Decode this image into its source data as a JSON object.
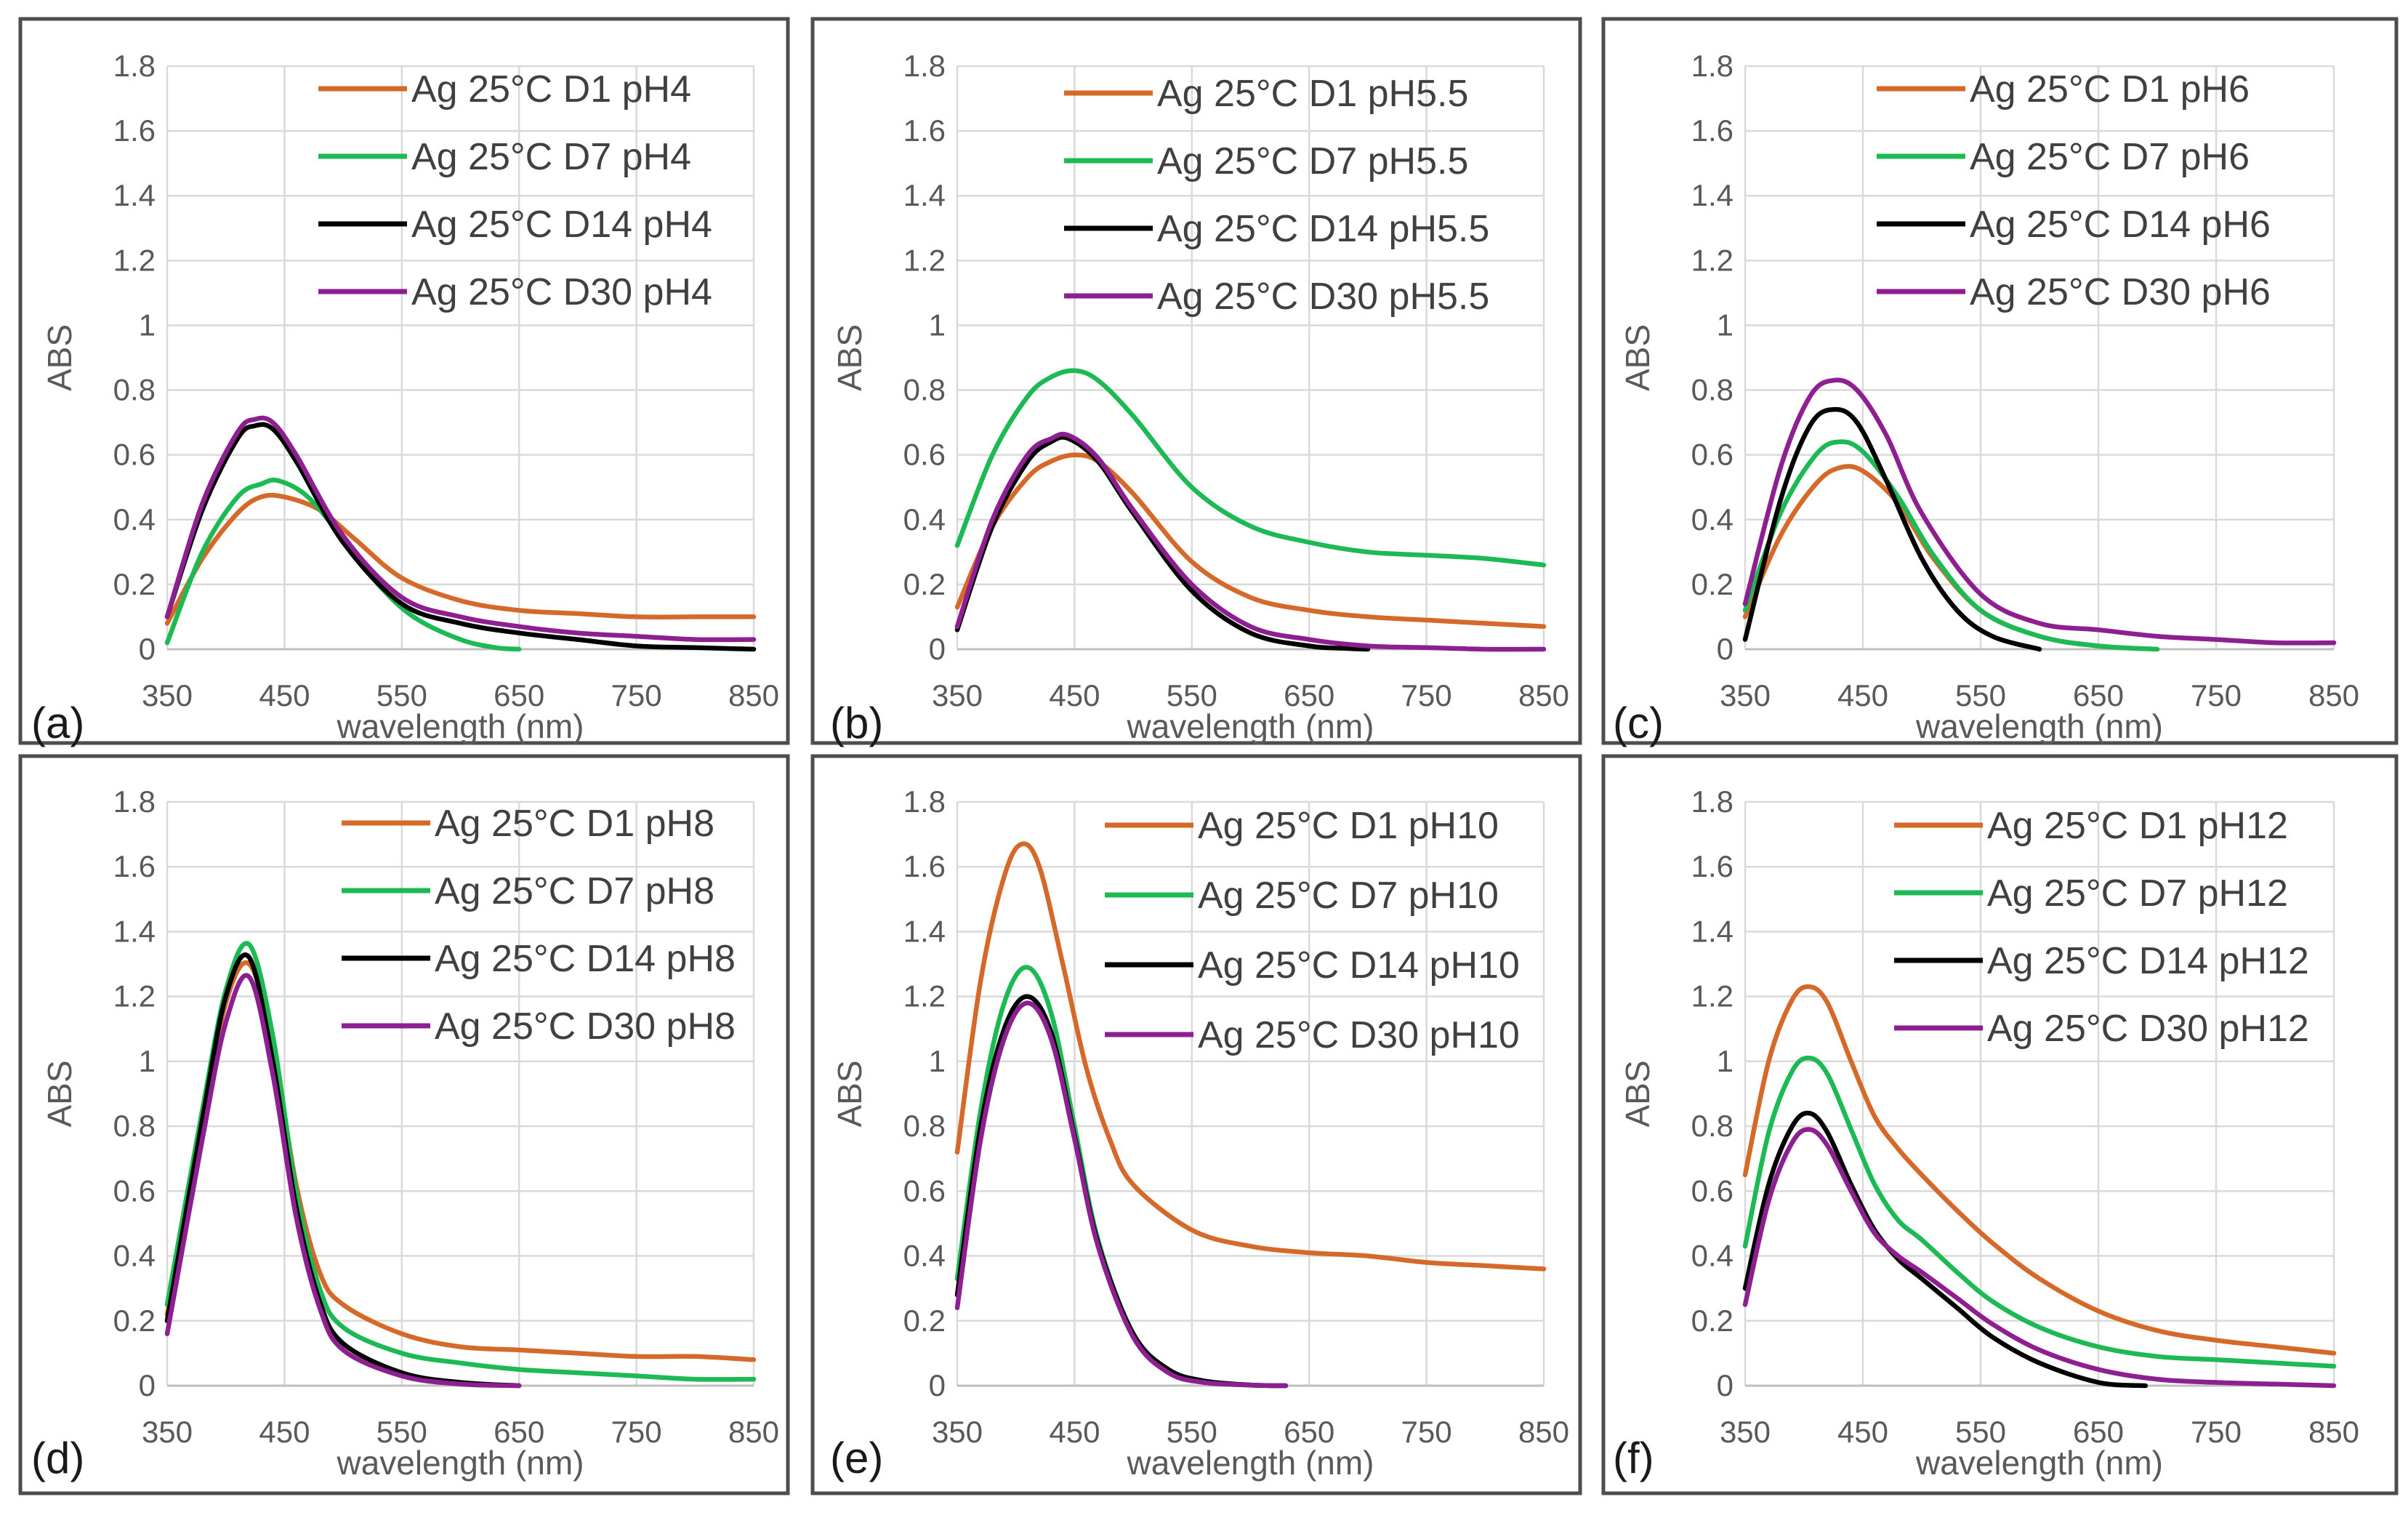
{
  "colors": {
    "D1": "#d4692a",
    "D7": "#1db954",
    "D14": "#000000",
    "D30": "#8e1f91"
  },
  "chart_data": [
    {
      "type": "line",
      "panel": "(a)",
      "xlabel": "wavelength (nm)",
      "ylabel": "ABS",
      "xlim": [
        350,
        850
      ],
      "ylim": [
        0,
        1.8
      ],
      "xticks": [
        350,
        450,
        550,
        650,
        750,
        850
      ],
      "yticks": [
        "0",
        "0.2",
        "0.4",
        "0.6",
        "0.8",
        "1",
        "1.2",
        "1.4",
        "1.6",
        "1.8"
      ],
      "series": [
        {
          "name": "Ag 25°C D1 pH4",
          "color_key": "D1",
          "x": [
            350,
            380,
            410,
            430,
            450,
            480,
            510,
            550,
            600,
            650,
            700,
            750,
            800,
            850
          ],
          "y": [
            0.08,
            0.28,
            0.42,
            0.47,
            0.47,
            0.43,
            0.34,
            0.22,
            0.15,
            0.12,
            0.11,
            0.1,
            0.1,
            0.1
          ]
        },
        {
          "name": "Ag 25°C D7 pH4",
          "color_key": "D7",
          "x": [
            350,
            380,
            410,
            430,
            445,
            470,
            500,
            530,
            560,
            600,
            630,
            650
          ],
          "y": [
            0.02,
            0.3,
            0.47,
            0.51,
            0.52,
            0.47,
            0.34,
            0.2,
            0.1,
            0.03,
            0.005,
            0
          ]
        },
        {
          "name": "Ag 25°C D14 pH4",
          "color_key": "D14",
          "x": [
            350,
            380,
            410,
            425,
            440,
            460,
            500,
            550,
            600,
            650,
            700,
            750,
            800,
            850
          ],
          "y": [
            0.1,
            0.43,
            0.65,
            0.69,
            0.68,
            0.58,
            0.33,
            0.14,
            0.08,
            0.05,
            0.03,
            0.01,
            0.005,
            0
          ]
        },
        {
          "name": "Ag 25°C D30 pH4",
          "color_key": "D30",
          "x": [
            350,
            380,
            410,
            425,
            440,
            460,
            500,
            550,
            600,
            650,
            700,
            750,
            800,
            850
          ],
          "y": [
            0.1,
            0.45,
            0.67,
            0.71,
            0.7,
            0.6,
            0.35,
            0.16,
            0.1,
            0.07,
            0.05,
            0.04,
            0.03,
            0.03
          ]
        }
      ]
    },
    {
      "type": "line",
      "panel": "(b)",
      "xlabel": "wavelength (nm)",
      "ylabel": "ABS",
      "xlim": [
        350,
        850
      ],
      "ylim": [
        0,
        1.8
      ],
      "xticks": [
        350,
        450,
        550,
        650,
        750,
        850
      ],
      "yticks": [
        "0",
        "0.2",
        "0.4",
        "0.6",
        "0.8",
        "1",
        "1.2",
        "1.4",
        "1.6",
        "1.8"
      ],
      "series": [
        {
          "name": "Ag 25°C D1 pH5.5",
          "color_key": "D1",
          "x": [
            350,
            380,
            410,
            430,
            450,
            470,
            500,
            550,
            600,
            650,
            700,
            750,
            800,
            850
          ],
          "y": [
            0.13,
            0.38,
            0.53,
            0.58,
            0.6,
            0.58,
            0.48,
            0.27,
            0.16,
            0.12,
            0.1,
            0.09,
            0.08,
            0.07
          ]
        },
        {
          "name": "Ag 25°C D7 pH5.5",
          "color_key": "D7",
          "x": [
            350,
            380,
            410,
            430,
            450,
            470,
            500,
            550,
            600,
            650,
            700,
            750,
            800,
            850
          ],
          "y": [
            0.32,
            0.6,
            0.78,
            0.84,
            0.86,
            0.83,
            0.72,
            0.5,
            0.38,
            0.33,
            0.3,
            0.29,
            0.28,
            0.26
          ]
        },
        {
          "name": "Ag 25°C D14 pH5.5",
          "color_key": "D14",
          "x": [
            350,
            380,
            410,
            430,
            445,
            470,
            500,
            550,
            600,
            650,
            680,
            700
          ],
          "y": [
            0.06,
            0.38,
            0.58,
            0.64,
            0.65,
            0.58,
            0.42,
            0.18,
            0.05,
            0.01,
            0.003,
            0
          ]
        },
        {
          "name": "Ag 25°C D30 pH5.5",
          "color_key": "D30",
          "x": [
            350,
            380,
            410,
            430,
            445,
            470,
            500,
            550,
            600,
            650,
            700,
            750,
            800,
            850
          ],
          "y": [
            0.07,
            0.4,
            0.6,
            0.65,
            0.66,
            0.59,
            0.43,
            0.2,
            0.07,
            0.03,
            0.01,
            0.005,
            0,
            0
          ]
        }
      ]
    },
    {
      "type": "line",
      "panel": "(c)",
      "xlabel": "wavelength (nm)",
      "ylabel": "ABS",
      "xlim": [
        350,
        850
      ],
      "ylim": [
        0,
        1.8
      ],
      "xticks": [
        350,
        450,
        550,
        650,
        750,
        850
      ],
      "yticks": [
        "0",
        "0.2",
        "0.4",
        "0.6",
        "0.8",
        "1",
        "1.2",
        "1.4",
        "1.6",
        "1.8"
      ],
      "series": [
        {
          "name": "Ag 25°C D1 pH6",
          "color_key": "D1",
          "x": [
            350,
            380,
            410,
            430,
            450,
            480,
            510,
            550,
            600,
            650,
            700
          ],
          "y": [
            0.1,
            0.35,
            0.51,
            0.56,
            0.55,
            0.45,
            0.28,
            0.12,
            0.04,
            0.01,
            0
          ]
        },
        {
          "name": "Ag 25°C D7 pH6",
          "color_key": "D7",
          "x": [
            350,
            380,
            410,
            430,
            450,
            480,
            510,
            550,
            600,
            650,
            700
          ],
          "y": [
            0.12,
            0.42,
            0.6,
            0.64,
            0.61,
            0.47,
            0.29,
            0.12,
            0.04,
            0.01,
            0
          ]
        },
        {
          "name": "Ag 25°C D14 pH6",
          "color_key": "D14",
          "x": [
            350,
            380,
            405,
            425,
            445,
            470,
            500,
            530,
            560,
            600
          ],
          "y": [
            0.03,
            0.46,
            0.69,
            0.74,
            0.7,
            0.52,
            0.28,
            0.12,
            0.04,
            0
          ]
        },
        {
          "name": "Ag 25°C D30 pH6",
          "color_key": "D30",
          "x": [
            350,
            380,
            405,
            425,
            445,
            470,
            500,
            550,
            600,
            650,
            700,
            750,
            800,
            850
          ],
          "y": [
            0.14,
            0.56,
            0.78,
            0.83,
            0.8,
            0.66,
            0.42,
            0.17,
            0.08,
            0.06,
            0.04,
            0.03,
            0.02,
            0.02
          ]
        }
      ]
    },
    {
      "type": "line",
      "panel": "(d)",
      "xlabel": "wavelength (nm)",
      "ylabel": "ABS",
      "xlim": [
        350,
        850
      ],
      "ylim": [
        0,
        1.8
      ],
      "xticks": [
        350,
        450,
        550,
        650,
        750,
        850
      ],
      "yticks": [
        "0",
        "0.2",
        "0.4",
        "0.6",
        "0.8",
        "1",
        "1.2",
        "1.4",
        "1.6",
        "1.8"
      ],
      "series": [
        {
          "name": "Ag 25°C D1 pH8",
          "color_key": "D1",
          "x": [
            350,
            380,
            400,
            420,
            440,
            460,
            480,
            500,
            550,
            600,
            650,
            700,
            750,
            800,
            850
          ],
          "y": [
            0.22,
            0.8,
            1.18,
            1.3,
            1.05,
            0.62,
            0.35,
            0.25,
            0.16,
            0.12,
            0.11,
            0.1,
            0.09,
            0.09,
            0.08
          ]
        },
        {
          "name": "Ag 25°C D7 pH8",
          "color_key": "D7",
          "x": [
            350,
            380,
            400,
            420,
            440,
            460,
            480,
            500,
            550,
            600,
            650,
            700,
            750,
            800,
            850
          ],
          "y": [
            0.25,
            0.85,
            1.22,
            1.36,
            1.08,
            0.6,
            0.3,
            0.18,
            0.1,
            0.07,
            0.05,
            0.04,
            0.03,
            0.02,
            0.02
          ]
        },
        {
          "name": "Ag 25°C D14 pH8",
          "color_key": "D14",
          "x": [
            350,
            380,
            400,
            420,
            440,
            460,
            480,
            500,
            550,
            600,
            650
          ],
          "y": [
            0.2,
            0.82,
            1.2,
            1.32,
            1.0,
            0.55,
            0.26,
            0.13,
            0.04,
            0.01,
            0
          ]
        },
        {
          "name": "Ag 25°C D30 pH8",
          "color_key": "D30",
          "x": [
            350,
            380,
            400,
            420,
            440,
            460,
            480,
            500,
            550,
            600,
            650
          ],
          "y": [
            0.16,
            0.76,
            1.12,
            1.26,
            0.96,
            0.52,
            0.24,
            0.11,
            0.03,
            0.005,
            0
          ]
        }
      ]
    },
    {
      "type": "line",
      "panel": "(e)",
      "xlabel": "wavelength (nm)",
      "ylabel": "ABS",
      "xlim": [
        350,
        850
      ],
      "ylim": [
        0,
        1.8
      ],
      "xticks": [
        350,
        450,
        550,
        650,
        750,
        850
      ],
      "yticks": [
        "0",
        "0.2",
        "0.4",
        "0.6",
        "0.8",
        "1",
        "1.2",
        "1.4",
        "1.6",
        "1.8"
      ],
      "series": [
        {
          "name": "Ag 25°C D1 pH10",
          "color_key": "D1",
          "x": [
            350,
            370,
            390,
            405,
            420,
            440,
            460,
            480,
            500,
            550,
            600,
            650,
            700,
            750,
            800,
            850
          ],
          "y": [
            0.72,
            1.25,
            1.57,
            1.67,
            1.6,
            1.3,
            0.98,
            0.76,
            0.62,
            0.48,
            0.43,
            0.41,
            0.4,
            0.38,
            0.37,
            0.36
          ]
        },
        {
          "name": "Ag 25°C D7 pH10",
          "color_key": "D7",
          "x": [
            350,
            370,
            390,
            410,
            430,
            450,
            470,
            500,
            530,
            560,
            600,
            630
          ],
          "y": [
            0.33,
            0.85,
            1.18,
            1.29,
            1.15,
            0.8,
            0.45,
            0.16,
            0.05,
            0.015,
            0.002,
            0
          ]
        },
        {
          "name": "Ag 25°C D14 pH10",
          "color_key": "D14",
          "x": [
            350,
            370,
            390,
            410,
            430,
            450,
            470,
            500,
            530,
            560,
            600,
            630
          ],
          "y": [
            0.28,
            0.8,
            1.1,
            1.2,
            1.09,
            0.77,
            0.44,
            0.16,
            0.05,
            0.015,
            0.002,
            0
          ]
        },
        {
          "name": "Ag 25°C D30 pH10",
          "color_key": "D30",
          "x": [
            350,
            370,
            390,
            410,
            430,
            450,
            470,
            500,
            530,
            560,
            600,
            630
          ],
          "y": [
            0.24,
            0.76,
            1.07,
            1.18,
            1.07,
            0.76,
            0.43,
            0.15,
            0.04,
            0.01,
            0.002,
            0
          ]
        }
      ]
    },
    {
      "type": "line",
      "panel": "(f)",
      "xlabel": "wavelength (nm)",
      "ylabel": "ABS",
      "xlim": [
        350,
        850
      ],
      "ylim": [
        0,
        1.8
      ],
      "xticks": [
        350,
        450,
        550,
        650,
        750,
        850
      ],
      "yticks": [
        "0",
        "0.2",
        "0.4",
        "0.6",
        "0.8",
        "1",
        "1.2",
        "1.4",
        "1.6",
        "1.8"
      ],
      "series": [
        {
          "name": "Ag 25°C D1 pH12",
          "color_key": "D1",
          "x": [
            350,
            370,
            390,
            405,
            420,
            440,
            460,
            480,
            500,
            530,
            560,
            600,
            650,
            700,
            750,
            800,
            850
          ],
          "y": [
            0.65,
            1.0,
            1.19,
            1.23,
            1.18,
            1.0,
            0.83,
            0.73,
            0.65,
            0.54,
            0.44,
            0.33,
            0.23,
            0.17,
            0.14,
            0.12,
            0.1
          ]
        },
        {
          "name": "Ag 25°C D7 pH12",
          "color_key": "D7",
          "x": [
            350,
            370,
            390,
            405,
            420,
            440,
            460,
            480,
            500,
            530,
            560,
            600,
            650,
            700,
            750,
            800,
            850
          ],
          "y": [
            0.43,
            0.78,
            0.97,
            1.01,
            0.96,
            0.79,
            0.62,
            0.51,
            0.45,
            0.35,
            0.26,
            0.18,
            0.12,
            0.09,
            0.08,
            0.07,
            0.06
          ]
        },
        {
          "name": "Ag 25°C D14 pH12",
          "color_key": "D14",
          "x": [
            350,
            370,
            390,
            405,
            420,
            440,
            460,
            480,
            500,
            530,
            560,
            600,
            650,
            690
          ],
          "y": [
            0.3,
            0.62,
            0.8,
            0.84,
            0.78,
            0.62,
            0.48,
            0.39,
            0.33,
            0.24,
            0.15,
            0.07,
            0.01,
            0
          ]
        },
        {
          "name": "Ag 25°C D30 pH12",
          "color_key": "D30",
          "x": [
            350,
            370,
            390,
            405,
            420,
            440,
            460,
            480,
            500,
            530,
            560,
            600,
            650,
            700,
            750,
            800,
            850
          ],
          "y": [
            0.25,
            0.57,
            0.75,
            0.79,
            0.74,
            0.6,
            0.47,
            0.4,
            0.35,
            0.27,
            0.19,
            0.11,
            0.05,
            0.02,
            0.01,
            0.005,
            0
          ]
        }
      ]
    }
  ]
}
